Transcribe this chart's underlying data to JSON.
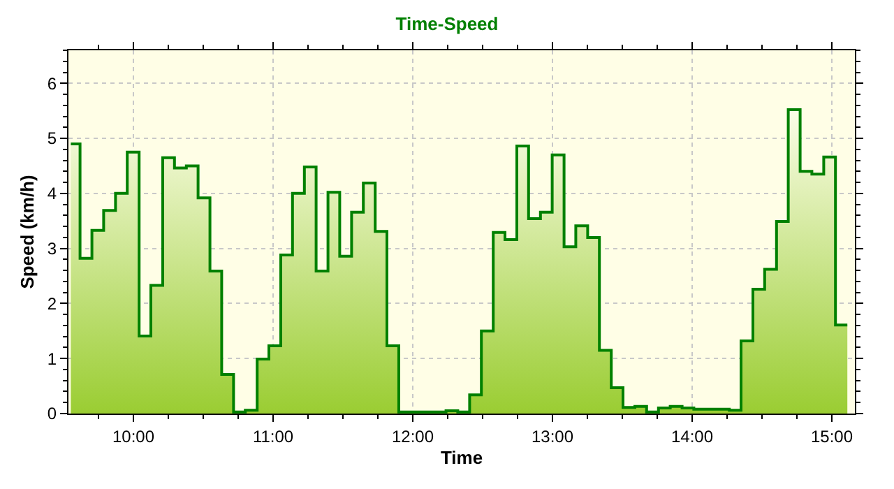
{
  "chart_data": {
    "type": "area",
    "title": "Time-Speed",
    "xlabel": "Time",
    "ylabel": "Speed (km/h)",
    "x": [
      9.552,
      9.618,
      9.618,
      9.703,
      9.703,
      9.787,
      9.787,
      9.872,
      9.872,
      9.956,
      9.956,
      10.041,
      10.041,
      10.125,
      10.125,
      10.21,
      10.21,
      10.294,
      10.294,
      10.379,
      10.379,
      10.463,
      10.463,
      10.548,
      10.548,
      10.632,
      10.632,
      10.717,
      10.717,
      10.801,
      10.801,
      10.886,
      10.886,
      10.97,
      10.97,
      11.055,
      11.055,
      11.139,
      11.139,
      11.224,
      11.224,
      11.308,
      11.308,
      11.393,
      11.393,
      11.477,
      11.477,
      11.562,
      11.562,
      11.646,
      11.646,
      11.731,
      11.731,
      11.815,
      11.815,
      11.9,
      11.9,
      11.984,
      11.984,
      12.069,
      12.069,
      12.153,
      12.153,
      12.238,
      12.238,
      12.322,
      12.322,
      12.407,
      12.407,
      12.491,
      12.491,
      12.576,
      12.576,
      12.66,
      12.66,
      12.745,
      12.745,
      12.829,
      12.829,
      12.914,
      12.914,
      12.998,
      12.998,
      13.083,
      13.083,
      13.167,
      13.167,
      13.252,
      13.252,
      13.336,
      13.336,
      13.421,
      13.421,
      13.505,
      13.505,
      13.59,
      13.59,
      13.674,
      13.674,
      13.759,
      13.759,
      13.843,
      13.843,
      13.928,
      13.928,
      14.012,
      14.012,
      14.097,
      14.097,
      14.181,
      14.181,
      14.266,
      14.266,
      14.35,
      14.35,
      14.435,
      14.435,
      14.519,
      14.519,
      14.604,
      14.604,
      14.688,
      14.688,
      14.773,
      14.773,
      14.857,
      14.857,
      14.942,
      14.942,
      15.026,
      15.026,
      15.111
    ],
    "series": [
      {
        "color": "#008000",
        "values": [
          4.9,
          4.9,
          2.82,
          2.82,
          3.33,
          3.33,
          3.69,
          3.69,
          4.0,
          4.0,
          4.75,
          4.75,
          1.41,
          1.41,
          2.33,
          2.33,
          4.65,
          4.65,
          4.46,
          4.46,
          4.5,
          4.5,
          3.92,
          3.92,
          2.59,
          2.59,
          0.71,
          0.71,
          0.03,
          0.03,
          0.06,
          0.06,
          0.99,
          0.99,
          1.23,
          1.23,
          2.88,
          2.88,
          4.0,
          4.0,
          4.48,
          4.48,
          2.59,
          2.59,
          4.02,
          4.02,
          2.86,
          2.86,
          3.66,
          3.66,
          4.19,
          4.19,
          3.31,
          3.31,
          1.23,
          1.23,
          0.03,
          0.03,
          0.03,
          0.03,
          0.03,
          0.03,
          0.03,
          0.03,
          0.05,
          0.05,
          0.03,
          0.03,
          0.34,
          0.34,
          1.5,
          1.5,
          3.29,
          3.29,
          3.16,
          3.16,
          4.86,
          4.86,
          3.54,
          3.54,
          3.66,
          3.66,
          4.7,
          4.7,
          3.03,
          3.03,
          3.41,
          3.41,
          3.2,
          3.2,
          1.15,
          1.15,
          0.47,
          0.47,
          0.11,
          0.11,
          0.13,
          0.13,
          0.03,
          0.03,
          0.1,
          0.1,
          0.13,
          0.13,
          0.1,
          0.1,
          0.08,
          0.08,
          0.08,
          0.08,
          0.08,
          0.08,
          0.06,
          0.06,
          1.32,
          1.32,
          2.26,
          2.26,
          2.62,
          2.62,
          3.49,
          3.49,
          5.52,
          5.52,
          4.4,
          4.4,
          4.35,
          4.35,
          4.66,
          4.66,
          1.61,
          1.61
        ]
      }
    ],
    "xlim": [
      9.535,
      15.165
    ],
    "xticks": [
      {
        "value": 10,
        "label": "10:00"
      },
      {
        "value": 11,
        "label": "11:00"
      },
      {
        "value": 12,
        "label": "12:00"
      },
      {
        "value": 13,
        "label": "13:00"
      },
      {
        "value": 14,
        "label": "14:00"
      },
      {
        "value": 15,
        "label": "15:00"
      }
    ],
    "ylim": [
      0,
      6.6
    ],
    "yticks": [
      0,
      1,
      2,
      3,
      4,
      5,
      6
    ],
    "grid": true,
    "marker": "none",
    "line_style": "solid"
  }
}
